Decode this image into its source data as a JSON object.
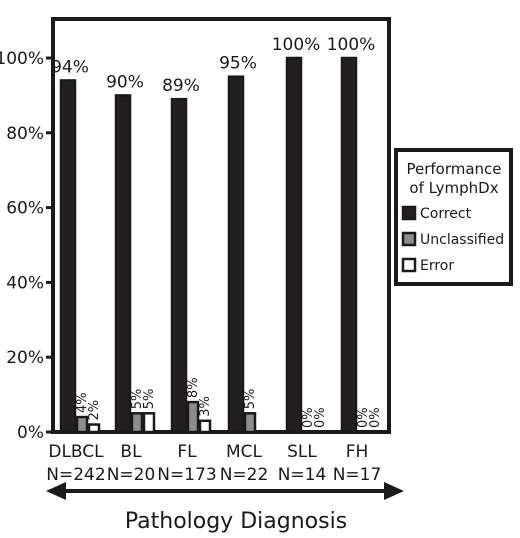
{
  "chart_data": {
    "type": "bar",
    "xlabel": "Pathology Diagnosis",
    "ylabel": "",
    "ylim": [
      0,
      100
    ],
    "yticks": [
      "0%",
      "20%",
      "40%",
      "60%",
      "80%",
      "100%"
    ],
    "categories": [
      "DLBCL",
      "BL",
      "FL",
      "MCL",
      "SLL",
      "FH"
    ],
    "category_counts": [
      "N=242",
      "N=20",
      "N=173",
      "N=22",
      "N=14",
      "N=17"
    ],
    "series": [
      {
        "name": "Correct",
        "values": [
          94,
          90,
          89,
          95,
          100,
          100
        ],
        "labels": [
          "94%",
          "90%",
          "89%",
          "95%",
          "100%",
          "100%"
        ],
        "color": "#231f20"
      },
      {
        "name": "Unclassified",
        "values": [
          4,
          5,
          8,
          5,
          0,
          0
        ],
        "labels": [
          "4%",
          "5%",
          "8%",
          "5%",
          "0%",
          "0%"
        ],
        "color": "#8c8c8c"
      },
      {
        "name": "Error",
        "values": [
          2,
          5,
          3,
          0,
          0,
          0
        ],
        "labels": [
          "2%",
          "5%",
          "3%",
          "",
          "0%",
          "0%"
        ],
        "color": "#ffffff"
      }
    ],
    "legend": {
      "title_line1": "Performance",
      "title_line2": "of LymphDx",
      "position": "right"
    },
    "grid": false
  }
}
